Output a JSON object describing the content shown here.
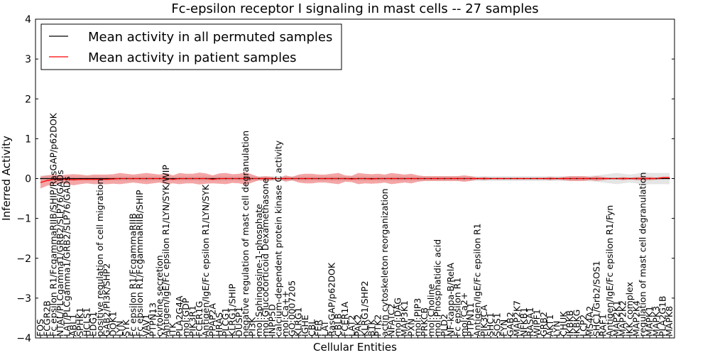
{
  "chart_data": {
    "type": "line",
    "title": "Fc-epsilon receptor I signaling in mast cells -- 27 samples",
    "xlabel": "Cellular Entities",
    "ylabel": "Inferred Activity",
    "ylim": [
      -4,
      4
    ],
    "yticks": [
      -4,
      -3,
      -2,
      -1,
      0,
      1,
      2,
      3,
      4
    ],
    "ytick_labels": [
      "−4",
      "−3",
      "−2",
      "−1",
      "0",
      "1",
      "2",
      "3",
      "4"
    ],
    "grid": false,
    "legend": {
      "placement": "top-left",
      "entries": [
        {
          "label": "Mean activity in all permuted samples",
          "color": "#000000"
        },
        {
          "label": "Mean activity in patient samples",
          "color": "#ff0000"
        }
      ]
    },
    "colors": {
      "patient_line": "#ff0000",
      "patient_band": "#f08080",
      "permuted_line": "#000000",
      "permuted_band": "#d3d3d3"
    },
    "categories": [
      "FOS",
      "FCGR2B",
      "Fc epsilon R1/FcgammaRIIB/SHIP/RasGAP/p62DOK",
      "NTAL/PLCgamma1/GRB2/SLP76/GADs",
      "LAT/PLCgamma1/GRB2/SLP76/GADs",
      "ABL1",
      "SPHK1",
      "HCLS1",
      "EDG1",
      "positive regulation of cell migration",
      "GAB2/PI3K/SHP2",
      "DOK1",
      "LYN",
      "SYK",
      "Fc epsilon R1/FcgammaRIIB",
      "Fc epsilon R1/FcgammaRIIB/SHIP",
      "VAV1",
      "PTPN13",
      "cytokine secretion",
      "Antigen/IgE/Fc epsilon R1/LYN/SYK/WIP",
      "ITK",
      "PLA2G4A",
      "mol:GDP",
      "PIK3R1",
      "FCER1G",
      "Antigen/IgE/Fc epsilon R1/LYN/SYK",
      "PPAP2A",
      "HRAS",
      "PLCG1",
      "KLRG1/SHIP",
      "DUSP1",
      "negative regulation of mast cell degranulation",
      "PI3K",
      "mol:Sphingosine-1-phosphate",
      "mol:Glucocorticoid Dexamethasone",
      "INPP5D",
      "calcium-dependent protein kinase C activity",
      "mol:Ca++",
      "GO:0007205",
      "KLRG1",
      "IGHE",
      "CBL",
      "FER",
      "LAT",
      "RasGAP/p62DOK",
      "CBLB",
      "FCER1A",
      "LAT2",
      "PAK2",
      "KLRG1/SHP2",
      "BTK",
      "PTK2",
      "actin cytoskeleton reorganization",
      "NFATC2",
      "mol:DAG",
      "MAP3K1",
      "PXN",
      "mol:PIP3",
      "PRKCB",
      "mol:Choline",
      "mol:Phosphatidic acid",
      "PLD2",
      "NF-kappa-B/RelA",
      "Fc epsilon R1",
      "mol:Ca2+",
      "PTPN11",
      "Antigen/IgE/Fc epsilon R1",
      "PIK3CA",
      "SHC1",
      "SOS1",
      "FYN",
      "GAB2",
      "MAP2K7",
      "NFKB1",
      "RASA1",
      "WIPF1",
      "GRB2",
      "AKT1",
      "LYN",
      "CHUK",
      "IKBKB",
      "IKBKG",
      "LCP2",
      "MS4A2",
      "SHC1/Grb2/SOS1",
      "RAF1",
      "Antigen/IgE/Fc epsilon R1/Fyn",
      "MAP2K1",
      "MAP2K2",
      "IKK complex",
      "MAP2K4",
      "regulation of mast cell degranulation",
      "MAPK1",
      "MAPK3",
      "PLA2G1B",
      "MAPK8"
    ],
    "series": [
      {
        "name": "Mean activity in all permuted samples",
        "color": "#000000",
        "values": [
          0,
          0,
          0,
          0,
          0,
          0,
          0,
          0,
          0,
          0,
          0,
          0,
          0,
          0,
          0,
          0,
          0,
          0,
          0,
          0,
          0,
          0,
          0,
          0,
          0,
          0,
          0,
          0,
          0,
          0,
          0,
          0,
          0,
          0,
          0,
          0,
          0,
          0,
          0,
          0,
          0,
          0,
          0,
          0,
          0,
          0,
          0,
          0,
          0,
          0,
          0,
          0,
          0,
          0,
          0,
          0,
          0,
          0,
          0,
          0,
          0,
          0,
          0,
          0,
          0,
          0,
          0,
          0,
          0,
          0,
          0,
          0,
          0,
          0,
          0,
          0,
          0,
          0,
          0,
          0,
          0,
          0,
          0,
          0,
          0,
          0,
          0,
          0,
          0,
          0,
          0,
          0,
          0,
          0,
          0,
          0
        ],
        "band_halfwidth": [
          0.08,
          0.08,
          0.07,
          0.07,
          0.07,
          0.06,
          0.06,
          0.06,
          0.06,
          0.06,
          0.06,
          0.06,
          0.06,
          0.06,
          0.06,
          0.06,
          0.07,
          0.06,
          0.06,
          0.07,
          0.06,
          0.06,
          0.06,
          0.06,
          0.06,
          0.07,
          0.06,
          0.06,
          0.06,
          0.06,
          0.06,
          0.06,
          0.06,
          0.06,
          0.06,
          0.06,
          0.06,
          0.06,
          0.06,
          0.06,
          0.06,
          0.06,
          0.06,
          0.06,
          0.06,
          0.06,
          0.06,
          0.06,
          0.06,
          0.06,
          0.06,
          0.06,
          0.06,
          0.06,
          0.07,
          0.06,
          0.06,
          0.06,
          0.06,
          0.06,
          0.06,
          0.06,
          0.06,
          0.06,
          0.06,
          0.06,
          0.06,
          0.06,
          0.06,
          0.06,
          0.06,
          0.06,
          0.06,
          0.06,
          0.06,
          0.06,
          0.06,
          0.06,
          0.06,
          0.06,
          0.06,
          0.06,
          0.06,
          0.07,
          0.08,
          0.1,
          0.12,
          0.14,
          0.12,
          0.1,
          0.12,
          0.16,
          0.14,
          0.14,
          0.14,
          0.14
        ]
      },
      {
        "name": "Mean activity in patient samples",
        "color": "#ff0000",
        "values": [
          -0.1,
          -0.05,
          -0.02,
          -0.02,
          -0.02,
          -0.03,
          -0.02,
          -0.02,
          -0.02,
          -0.02,
          -0.02,
          -0.01,
          0,
          0,
          0,
          0,
          0,
          0,
          0,
          0,
          -0.02,
          0,
          0,
          0,
          0,
          0,
          -0.02,
          0,
          0,
          0,
          0,
          0,
          0,
          0,
          0,
          0,
          0,
          0,
          0,
          0,
          0,
          0,
          0,
          0,
          0,
          0,
          0,
          -0.01,
          0,
          0,
          -0.01,
          0,
          0,
          0,
          0,
          0,
          0,
          0,
          0,
          0,
          0,
          0,
          0,
          0,
          0,
          0,
          0,
          0,
          0,
          0,
          0,
          0,
          0,
          0,
          0,
          0,
          0,
          0,
          0,
          0,
          0,
          0,
          0,
          0,
          0,
          0,
          0,
          0,
          0,
          0,
          0,
          0,
          0,
          0,
          0.02,
          0.02
        ],
        "band_halfwidth": [
          0.15,
          0.13,
          0.12,
          0.1,
          0.12,
          0.14,
          0.12,
          0.1,
          0.12,
          0.12,
          0.12,
          0.12,
          0.14,
          0.12,
          0.1,
          0.12,
          0.14,
          0.12,
          0.1,
          0.14,
          0.1,
          0.14,
          0.12,
          0.12,
          0.15,
          0.13,
          0.1,
          0.13,
          0.14,
          0.11,
          0.12,
          0.16,
          0.1,
          0.04,
          0.06,
          0.04,
          0.0,
          0.08,
          0.04,
          0.1,
          0.12,
          0.12,
          0.1,
          0.1,
          0.12,
          0.14,
          0.08,
          0.08,
          0.14,
          0.12,
          0.12,
          0.12,
          0.1,
          0.14,
          0.12,
          0.1,
          0.12,
          0.08,
          0.06,
          0.06,
          0.06,
          0.06,
          0.06,
          0.06,
          0.08,
          0.06,
          0.02,
          0.04,
          0.02,
          0.02,
          0.02,
          0.02,
          0.02,
          0.02,
          0.02,
          0.02,
          0.02,
          0.04,
          0.02,
          0.04,
          0.06,
          0.06,
          0.06,
          0.04,
          0.06,
          0.04,
          0.02,
          0.02,
          0.04,
          0.02,
          0.04,
          0.04,
          0.04,
          0.03,
          0.03,
          0.03
        ]
      }
    ]
  }
}
